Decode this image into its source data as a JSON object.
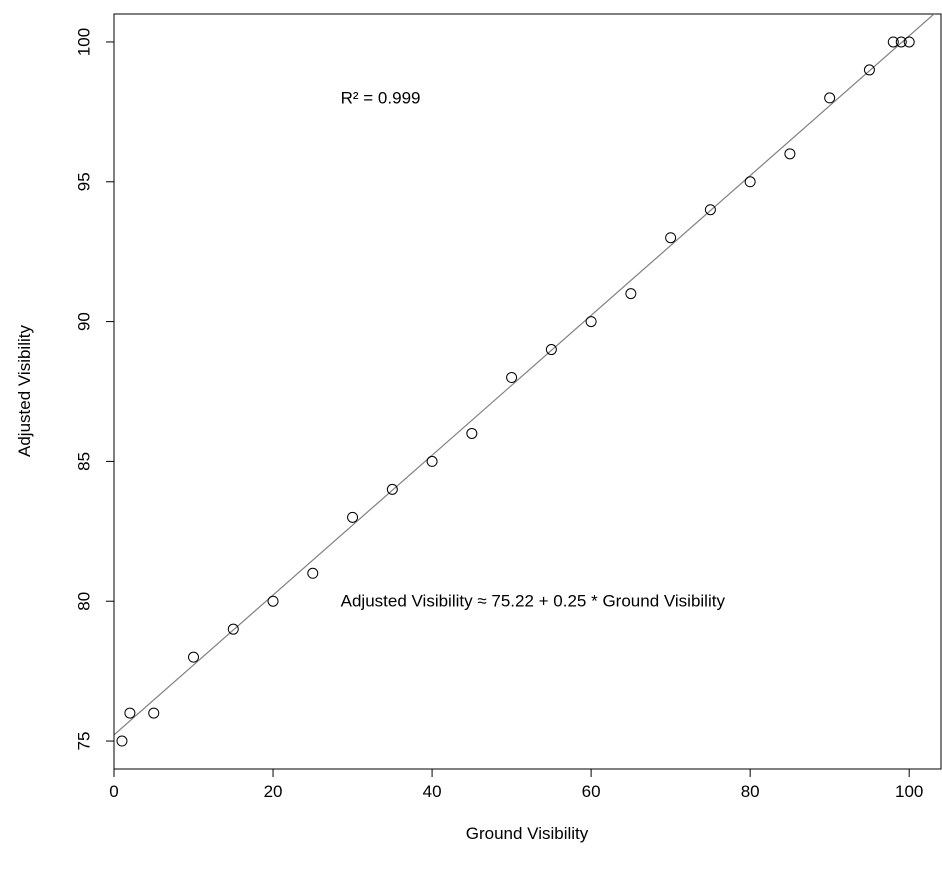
{
  "chart_data": {
    "type": "scatter",
    "xlabel": "Ground Visibility",
    "ylabel": "Adjusted Visibility",
    "xlim": [
      0,
      104
    ],
    "ylim": [
      74,
      101
    ],
    "x_ticks": [
      0,
      20,
      40,
      60,
      80,
      100
    ],
    "y_ticks": [
      75,
      80,
      85,
      90,
      95,
      100
    ],
    "grid": false,
    "series": [
      {
        "points": [
          {
            "x": 1,
            "y": 75
          },
          {
            "x": 2,
            "y": 76
          },
          {
            "x": 5,
            "y": 76
          },
          {
            "x": 10,
            "y": 78
          },
          {
            "x": 15,
            "y": 79
          },
          {
            "x": 20,
            "y": 80
          },
          {
            "x": 25,
            "y": 81
          },
          {
            "x": 30,
            "y": 83
          },
          {
            "x": 35,
            "y": 84
          },
          {
            "x": 40,
            "y": 85
          },
          {
            "x": 45,
            "y": 86
          },
          {
            "x": 50,
            "y": 88
          },
          {
            "x": 55,
            "y": 89
          },
          {
            "x": 60,
            "y": 90
          },
          {
            "x": 65,
            "y": 91
          },
          {
            "x": 70,
            "y": 93
          },
          {
            "x": 75,
            "y": 94
          },
          {
            "x": 80,
            "y": 95
          },
          {
            "x": 85,
            "y": 96
          },
          {
            "x": 90,
            "y": 98
          },
          {
            "x": 95,
            "y": 99
          },
          {
            "x": 98,
            "y": 100
          },
          {
            "x": 99,
            "y": 100
          },
          {
            "x": 100,
            "y": 100
          }
        ]
      }
    ],
    "fit_line": {
      "intercept": 75.22,
      "slope": 0.25
    },
    "annotations": [
      {
        "id": "r-squared-annotation",
        "text": "R² = 0.999",
        "x": 28.5,
        "y": 98
      },
      {
        "id": "equation-annotation",
        "text": "Adjusted Visibility ≈ 75.22 + 0.25 * Ground Visibility",
        "x": 28.5,
        "y": 80
      }
    ],
    "colors": {
      "points": "#000000",
      "line": "#808080",
      "axes": "#000000"
    }
  }
}
